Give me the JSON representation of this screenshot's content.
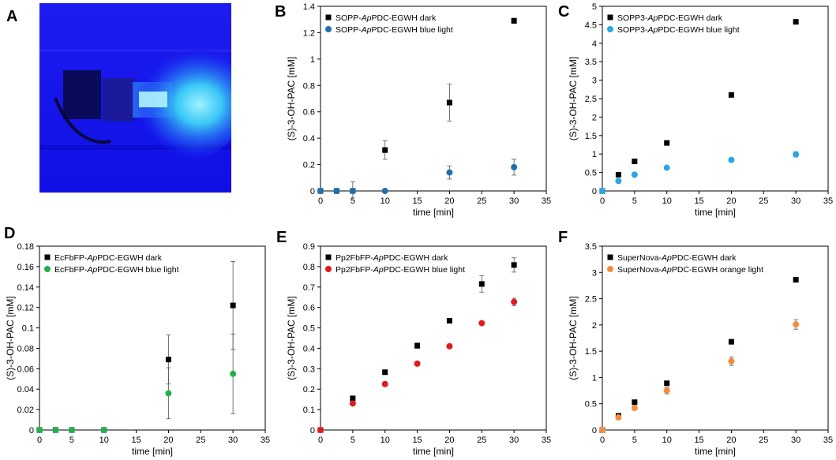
{
  "panel_labels": [
    "A",
    "B",
    "C",
    "D",
    "E",
    "F"
  ],
  "colors": {
    "dark": "#000000",
    "blue": "#1f6fb2",
    "cyan": "#29a8e0",
    "green": "#22b14c",
    "red": "#e11b1b",
    "orange": "#f28c3c",
    "photo_bg": "#1414ee"
  },
  "chart_data": [
    {
      "id": "B",
      "type": "scatter",
      "xlabel": "time  [min]",
      "ylabel": "(S)-3-OH-PAC  [mM]",
      "xlim": [
        0,
        35
      ],
      "ylim": [
        0,
        1.4
      ],
      "xticks": [
        0,
        5,
        10,
        15,
        20,
        25,
        30,
        35
      ],
      "yticks": [
        0,
        0.2,
        0.4,
        0.6,
        0.8,
        1.0,
        1.2,
        1.4
      ],
      "ytick_labels": [
        "0",
        "0.2",
        "0.4",
        "0.6",
        "0.8",
        "1",
        "1.2",
        "1.4"
      ],
      "legend_position": "top-left",
      "series": [
        {
          "name": "SOPP-ApPDC-EGWH dark",
          "label_parts": [
            "SOPP-",
            "Ap",
            "PDC-EGWH dark"
          ],
          "marker": "square",
          "color": "#000000",
          "x": [
            0,
            2.5,
            5,
            10,
            20,
            30
          ],
          "y": [
            0,
            0,
            0,
            0.31,
            0.67,
            1.29
          ],
          "err": [
            0,
            0,
            0.07,
            0.07,
            0.14,
            0.02
          ]
        },
        {
          "name": "SOPP-ApPDC-EGWH blue light",
          "label_parts": [
            "SOPP-",
            "Ap",
            "PDC-EGWH blue light"
          ],
          "marker": "circle",
          "color": "#1f6fb2",
          "x": [
            0,
            2.5,
            5,
            10,
            20,
            30
          ],
          "y": [
            0,
            0,
            0,
            0,
            0.14,
            0.18
          ],
          "err": [
            0,
            0,
            0,
            0,
            0.05,
            0.06
          ]
        }
      ]
    },
    {
      "id": "C",
      "type": "scatter",
      "xlabel": "time  [min]",
      "ylabel": "(S)-3-OH-PAC  [mM]",
      "xlim": [
        0,
        35
      ],
      "ylim": [
        0,
        5
      ],
      "xticks": [
        0,
        5,
        10,
        15,
        20,
        25,
        30,
        35
      ],
      "yticks": [
        0,
        0.5,
        1,
        1.5,
        2,
        2.5,
        3,
        3.5,
        4,
        4.5,
        5
      ],
      "ytick_labels": [
        "0",
        "0.5",
        "1",
        "1.5",
        "2",
        "2.5",
        "3",
        "3.5",
        "4",
        "4.5",
        "5"
      ],
      "legend_position": "top-left",
      "series": [
        {
          "name": "SOPP3-ApPDC-EGWH dark",
          "label_parts": [
            "SOPP3-",
            "Ap",
            "PDC-EGWH dark"
          ],
          "marker": "square",
          "color": "#000000",
          "x": [
            0,
            2.5,
            5,
            10,
            20,
            30
          ],
          "y": [
            0,
            0.44,
            0.8,
            1.3,
            2.6,
            4.58
          ],
          "err": [
            0,
            0,
            0,
            0,
            0,
            0.05
          ]
        },
        {
          "name": "SOPP3-ApPDC-EGWH blue light",
          "label_parts": [
            "SOPP3-",
            "Ap",
            "PDC-EGWH blue light"
          ],
          "marker": "circle",
          "color": "#29a8e0",
          "x": [
            0,
            2.5,
            5,
            10,
            20,
            30
          ],
          "y": [
            0,
            0.27,
            0.44,
            0.63,
            0.84,
            0.99
          ],
          "err": [
            0,
            0,
            0,
            0,
            0.04,
            0.07
          ]
        }
      ]
    },
    {
      "id": "D",
      "type": "scatter",
      "xlabel": "time  [min]",
      "ylabel": "(S)-3-OH-PAC  [mM]",
      "xlim": [
        0,
        35
      ],
      "ylim": [
        0,
        0.18
      ],
      "xticks": [
        0,
        5,
        10,
        15,
        20,
        25,
        30,
        35
      ],
      "yticks": [
        0,
        0.02,
        0.04,
        0.06,
        0.08,
        0.1,
        0.12,
        0.14,
        0.16,
        0.18
      ],
      "ytick_labels": [
        "0",
        "0.02",
        "0.04",
        "0.06",
        "0.08",
        "0.1",
        "0.12",
        "0.14",
        "0.16",
        "0.18"
      ],
      "legend_position": "top-left",
      "series": [
        {
          "name": "EcFbFP-ApPDC-EGWH dark",
          "label_parts": [
            "EcFbFP-",
            "Ap",
            "PDC-EGWH dark"
          ],
          "marker": "square",
          "color": "#000000",
          "x": [
            0,
            2.5,
            5,
            10,
            20,
            30
          ],
          "y": [
            0,
            0,
            0,
            0,
            0.069,
            0.122
          ],
          "err": [
            0,
            0,
            0,
            0,
            0.024,
            0.043
          ]
        },
        {
          "name": "EcFbFP-ApPDC-EGWH blue light",
          "label_parts": [
            "EcFbFP-",
            "Ap",
            "PDC-EGWH blue light"
          ],
          "marker": "circle",
          "color": "#22b14c",
          "x": [
            0,
            2.5,
            5,
            10,
            20,
            30
          ],
          "y": [
            0,
            0,
            0,
            0,
            0.036,
            0.055
          ],
          "err": [
            0,
            0,
            0,
            0,
            0.025,
            0.039
          ]
        }
      ]
    },
    {
      "id": "E",
      "type": "scatter",
      "xlabel": "time  [min]",
      "ylabel": "(S)-3-OH-PAC  [mM]",
      "xlim": [
        0,
        35
      ],
      "ylim": [
        0,
        0.9
      ],
      "xticks": [
        0,
        5,
        10,
        15,
        20,
        25,
        30,
        35
      ],
      "yticks": [
        0,
        0.1,
        0.2,
        0.3,
        0.4,
        0.5,
        0.6,
        0.7,
        0.8,
        0.9
      ],
      "ytick_labels": [
        "0",
        "0.1",
        "0.2",
        "0.3",
        "0.4",
        "0.5",
        "0.6",
        "0.7",
        "0.8",
        "0.9"
      ],
      "legend_position": "top-left",
      "series": [
        {
          "name": "Pp2FbFP-ApPDC-EGWH dark",
          "label_parts": [
            "Pp2FbFP-",
            "Ap",
            "PDC-EGWH dark"
          ],
          "marker": "square",
          "color": "#000000",
          "x": [
            0,
            5,
            10,
            15,
            20,
            25,
            30
          ],
          "y": [
            0,
            0.155,
            0.283,
            0.413,
            0.535,
            0.715,
            0.808
          ],
          "err": [
            0,
            0.008,
            0.006,
            0.013,
            0.012,
            0.04,
            0.035
          ]
        },
        {
          "name": "Pp2FbFP-ApPDC-EGWH blue light",
          "label_parts": [
            "Pp2FbFP-",
            "Ap",
            "PDC-EGWH blue light"
          ],
          "marker": "circle",
          "color": "#e11b1b",
          "x": [
            0,
            5,
            10,
            15,
            20,
            25,
            30
          ],
          "y": [
            0,
            0.13,
            0.225,
            0.325,
            0.41,
            0.523,
            0.627
          ],
          "err": [
            0,
            0,
            0,
            0,
            0,
            0,
            0.018
          ]
        }
      ]
    },
    {
      "id": "F",
      "type": "scatter",
      "xlabel": "time  [min]",
      "ylabel": "(S)-3-OH-PAC  [mM]",
      "xlim": [
        0,
        35
      ],
      "ylim": [
        0,
        3.5
      ],
      "xticks": [
        0,
        5,
        10,
        15,
        20,
        25,
        30,
        35
      ],
      "yticks": [
        0,
        0.5,
        1,
        1.5,
        2,
        2.5,
        3,
        3.5
      ],
      "ytick_labels": [
        "0",
        "0.5",
        "1",
        "1.5",
        "2",
        "2.5",
        "3",
        "3.5"
      ],
      "legend_position": "top-left",
      "series": [
        {
          "name": "SuperNova-ApPDC-EGWH dark",
          "label_parts": [
            "SuperNova-",
            "Ap",
            "PDC-EGWH dark"
          ],
          "marker": "square",
          "color": "#000000",
          "x": [
            0,
            2.5,
            5,
            10,
            20,
            30
          ],
          "y": [
            0,
            0.27,
            0.53,
            0.89,
            1.68,
            2.86
          ],
          "err": [
            0,
            0,
            0,
            0.02,
            0.03,
            0.04
          ]
        },
        {
          "name": "SuperNova-ApPDC-EGWH orange light",
          "label_parts": [
            "SuperNova-",
            "Ap",
            "PDC-EGWH orange light"
          ],
          "marker": "circle",
          "color": "#f28c3c",
          "x": [
            0,
            2.5,
            5,
            10,
            20,
            30
          ],
          "y": [
            0,
            0.24,
            0.42,
            0.75,
            1.31,
            2.01
          ],
          "err": [
            0,
            0,
            0,
            0.06,
            0.08,
            0.09
          ]
        }
      ]
    }
  ]
}
